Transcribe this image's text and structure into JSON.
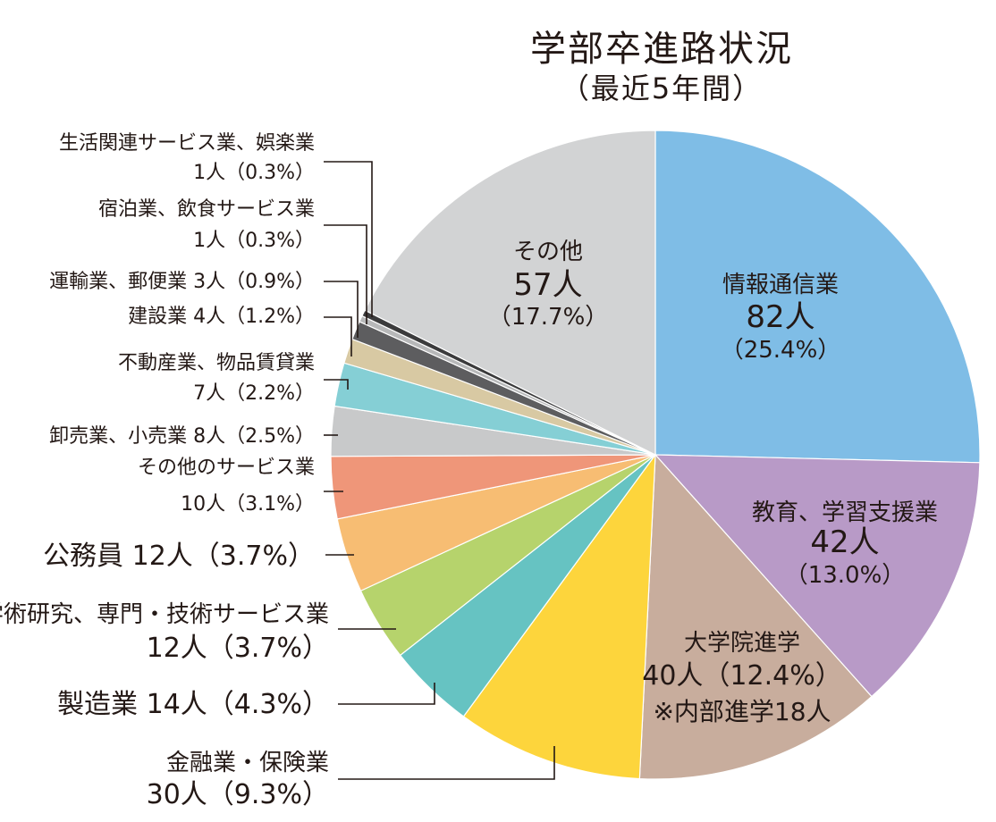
{
  "chart_data": {
    "type": "pie",
    "title": "学部卒進路状況",
    "subtitle": "（最近5年間）",
    "slices": [
      {
        "name": "情報通信業",
        "count_label": "82人",
        "pct_label": "（25.4%）",
        "value": 82,
        "percent": 25.4,
        "color": "#7fbde6"
      },
      {
        "name": "教育、学習支援業",
        "count_label": "42人",
        "pct_label": "（13.0%）",
        "value": 42,
        "percent": 13.0,
        "color": "#b89ac7"
      },
      {
        "name": "大学院進学",
        "count_label": "40人（12.4%）",
        "note": "※内部進学18人",
        "value": 40,
        "percent": 12.4,
        "color": "#c8ad9d"
      },
      {
        "name": "金融業・保険業",
        "count_label": "30人（9.3%）",
        "value": 30,
        "percent": 9.3,
        "color": "#fdd53c"
      },
      {
        "name": "製造業",
        "count_label": "14人（4.3%）",
        "value": 14,
        "percent": 4.3,
        "color": "#66c3c2"
      },
      {
        "name": "学術研究、専門・技術サービス業",
        "count_label": "12人（3.7%）",
        "value": 12,
        "percent": 3.7,
        "color": "#b6d36c"
      },
      {
        "name": "公務員",
        "count_label": "12人（3.7%）",
        "value": 12,
        "percent": 3.7,
        "color": "#f7bd73"
      },
      {
        "name": "その他のサービス業",
        "count_label": "10人（3.1%）",
        "value": 10,
        "percent": 3.1,
        "color": "#ef9679"
      },
      {
        "name": "卸売業、小売業",
        "count_label": "8人（2.5%）",
        "value": 8,
        "percent": 2.5,
        "color": "#c8c9ca"
      },
      {
        "name": "不動産業、物品賃貸業",
        "count_label": "7人（2.2%）",
        "value": 7,
        "percent": 2.2,
        "color": "#85cfd5"
      },
      {
        "name": "建設業",
        "count_label": "4人（1.2%）",
        "value": 4,
        "percent": 1.2,
        "color": "#d8c9a3"
      },
      {
        "name": "運輸業、郵便業",
        "count_label": "3人（0.9%）",
        "value": 3,
        "percent": 0.9,
        "color": "#5d5d5f"
      },
      {
        "name": "宿泊業、飲食サービス業",
        "count_label": "1人（0.3%）",
        "value": 1,
        "percent": 0.3,
        "color": "#b7b8b9"
      },
      {
        "name": "生活関連サービス業、娯楽業",
        "count_label": "1人（0.3%）",
        "value": 1,
        "percent": 0.3,
        "color": "#3b3b3c"
      },
      {
        "name": "その他",
        "count_label": "57人",
        "pct_label": "（17.7%）",
        "value": 57,
        "percent": 17.7,
        "color": "#d2d3d4"
      }
    ]
  }
}
